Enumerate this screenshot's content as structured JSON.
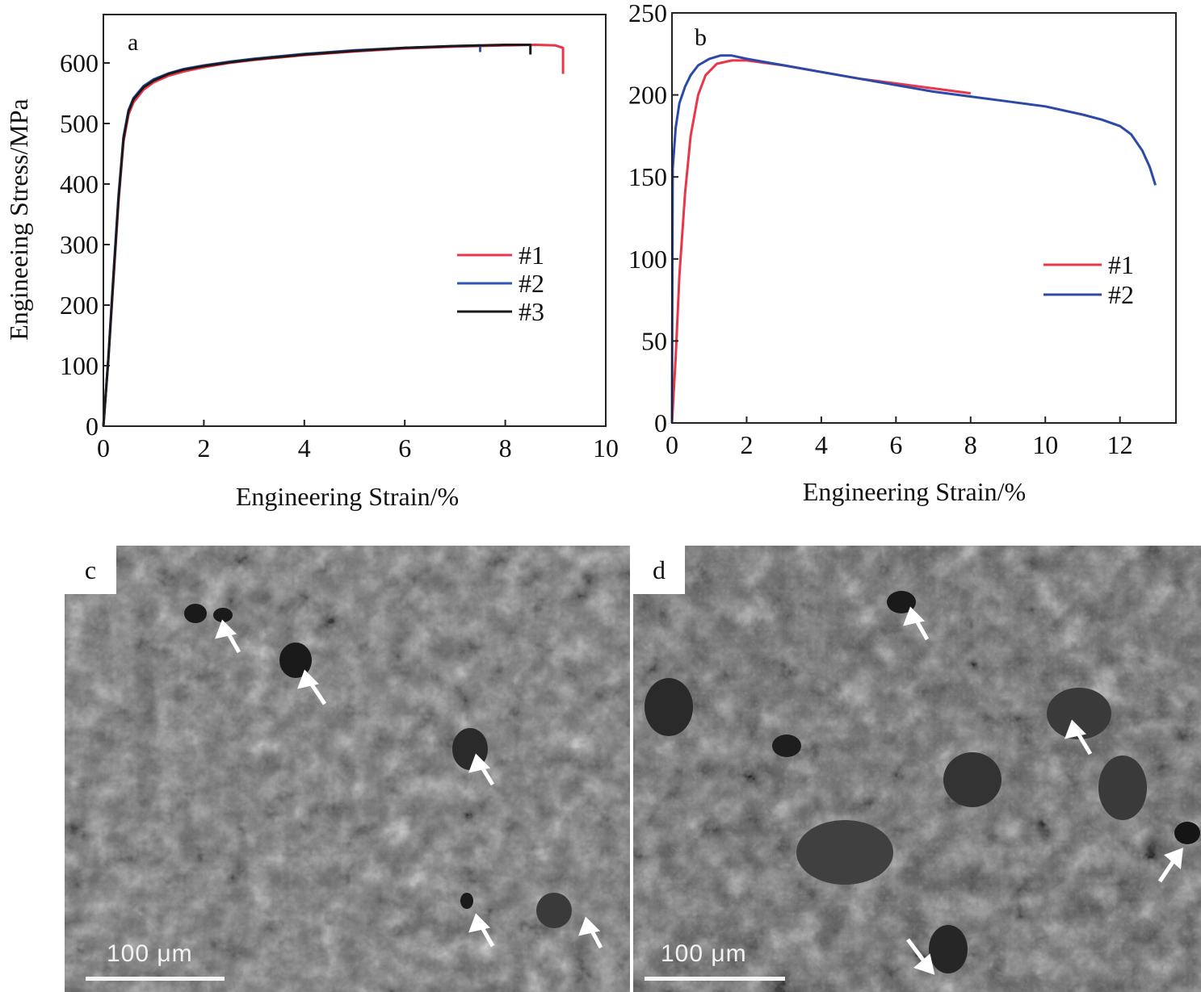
{
  "chart_data": [
    {
      "type": "line",
      "panel_label": "a",
      "xlabel": "Engineering Strain/%",
      "ylabel": "Engineeing Stress/MPa",
      "xlim": [
        0,
        10
      ],
      "ylim": [
        0,
        680
      ],
      "xticks": [
        0,
        2,
        4,
        6,
        8,
        10
      ],
      "yticks": [
        0,
        100,
        200,
        300,
        400,
        500,
        600
      ],
      "legend_position": "right-middle",
      "series": [
        {
          "name": "#1",
          "color": "#e8364a",
          "x": [
            0,
            0.1,
            0.2,
            0.3,
            0.4,
            0.5,
            0.6,
            0.8,
            1.0,
            1.3,
            1.6,
            2.0,
            2.5,
            3.0,
            4.0,
            5.0,
            6.0,
            7.0,
            8.0,
            8.6,
            9.0,
            9.15,
            9.15
          ],
          "y": [
            0,
            110,
            240,
            370,
            470,
            515,
            535,
            556,
            568,
            579,
            586,
            593,
            600,
            605,
            613,
            619,
            624,
            627,
            629,
            630,
            629,
            625,
            582
          ]
        },
        {
          "name": "#2",
          "color": "#2f55b5",
          "x": [
            0,
            0.1,
            0.2,
            0.3,
            0.4,
            0.5,
            0.6,
            0.8,
            1.0,
            1.3,
            1.6,
            2.0,
            2.5,
            3.0,
            4.0,
            5.0,
            6.0,
            7.0,
            7.5,
            7.5
          ],
          "y": [
            0,
            115,
            250,
            380,
            478,
            522,
            542,
            562,
            573,
            583,
            590,
            596,
            602,
            607,
            615,
            621,
            625,
            628,
            629,
            618
          ]
        },
        {
          "name": "#3",
          "color": "#1a1a1a",
          "x": [
            0,
            0.1,
            0.2,
            0.3,
            0.4,
            0.5,
            0.6,
            0.8,
            1.0,
            1.3,
            1.6,
            2.0,
            2.5,
            3.0,
            4.0,
            5.0,
            6.0,
            7.0,
            8.0,
            8.5,
            8.5
          ],
          "y": [
            0,
            112,
            245,
            375,
            475,
            520,
            540,
            560,
            571,
            582,
            589,
            595,
            601,
            606,
            614,
            620,
            625,
            628,
            630,
            630,
            614
          ]
        }
      ]
    },
    {
      "type": "line",
      "panel_label": "b",
      "xlabel": "Engineering Strain/%",
      "ylabel": "",
      "xlim": [
        0,
        13.5
      ],
      "ylim": [
        0,
        250
      ],
      "xticks": [
        0,
        2,
        4,
        6,
        8,
        10,
        12
      ],
      "yticks": [
        0,
        50,
        100,
        150,
        200,
        250
      ],
      "legend_position": "right-middle",
      "series": [
        {
          "name": "#1",
          "color": "#e8364a",
          "x": [
            0,
            0.1,
            0.2,
            0.35,
            0.5,
            0.7,
            0.9,
            1.2,
            1.6,
            2.0,
            3.0,
            4.0,
            5.0,
            6.0,
            7.0,
            8.0
          ],
          "y": [
            0,
            40,
            90,
            140,
            175,
            200,
            212,
            219,
            221,
            221,
            218,
            214,
            210,
            207,
            204,
            201
          ]
        },
        {
          "name": "#2",
          "color": "#2b4aa8",
          "x": [
            0,
            0.02,
            0.1,
            0.2,
            0.35,
            0.5,
            0.7,
            1.0,
            1.3,
            1.6,
            2.0,
            3.0,
            4.0,
            5.0,
            6.0,
            7.0,
            8.0,
            9.0,
            10.0,
            11.0,
            11.5,
            12.0,
            12.3,
            12.6,
            12.8,
            12.95
          ],
          "y": [
            0,
            155,
            180,
            195,
            205,
            212,
            218,
            222,
            224,
            224,
            222,
            218,
            214,
            210,
            206,
            202,
            199,
            196,
            193,
            188,
            185,
            181,
            176,
            166,
            156,
            145
          ]
        }
      ]
    }
  ],
  "sem_images": [
    {
      "panel_label": "c",
      "scale_label": "100 μm"
    },
    {
      "panel_label": "d",
      "scale_label": "100 μm"
    }
  ]
}
